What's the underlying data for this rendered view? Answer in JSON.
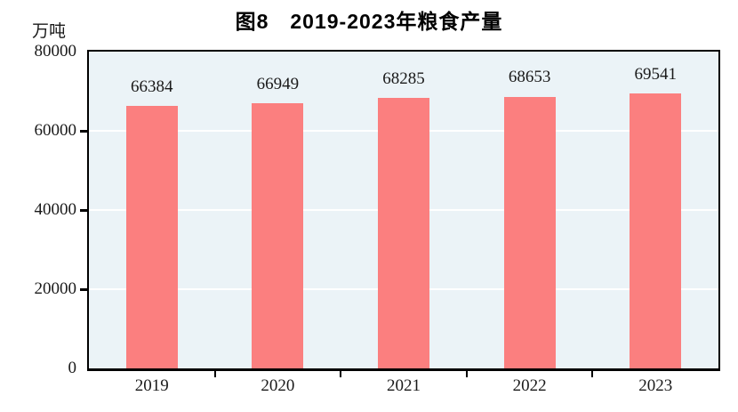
{
  "chart": {
    "title": "图8　2019-2023年粮食产量",
    "unit_label": "万吨"
  },
  "chart_data": {
    "type": "bar",
    "title": "图8　2019-2023年粮食产量",
    "xlabel": "",
    "ylabel": "万吨",
    "categories": [
      "2019",
      "2020",
      "2021",
      "2022",
      "2023"
    ],
    "values": [
      66384,
      66949,
      68285,
      68653,
      69541
    ],
    "data_labels": [
      "66384",
      "66949",
      "68285",
      "68653",
      "69541"
    ],
    "ylim": [
      0,
      80000
    ],
    "yticks": [
      0,
      20000,
      40000,
      60000,
      80000
    ],
    "ytick_labels": [
      "0",
      "20000",
      "40000",
      "60000",
      "80000"
    ],
    "grid": true,
    "legend": "none",
    "colors": {
      "bar": "#FB7F7F",
      "plot_background": "#EBF3F7",
      "gridline": "#FFFFFF",
      "frame": "#000000",
      "text": "#1a1a1a",
      "title_text": "#000000",
      "page_background": "#FFFFFF"
    }
  }
}
